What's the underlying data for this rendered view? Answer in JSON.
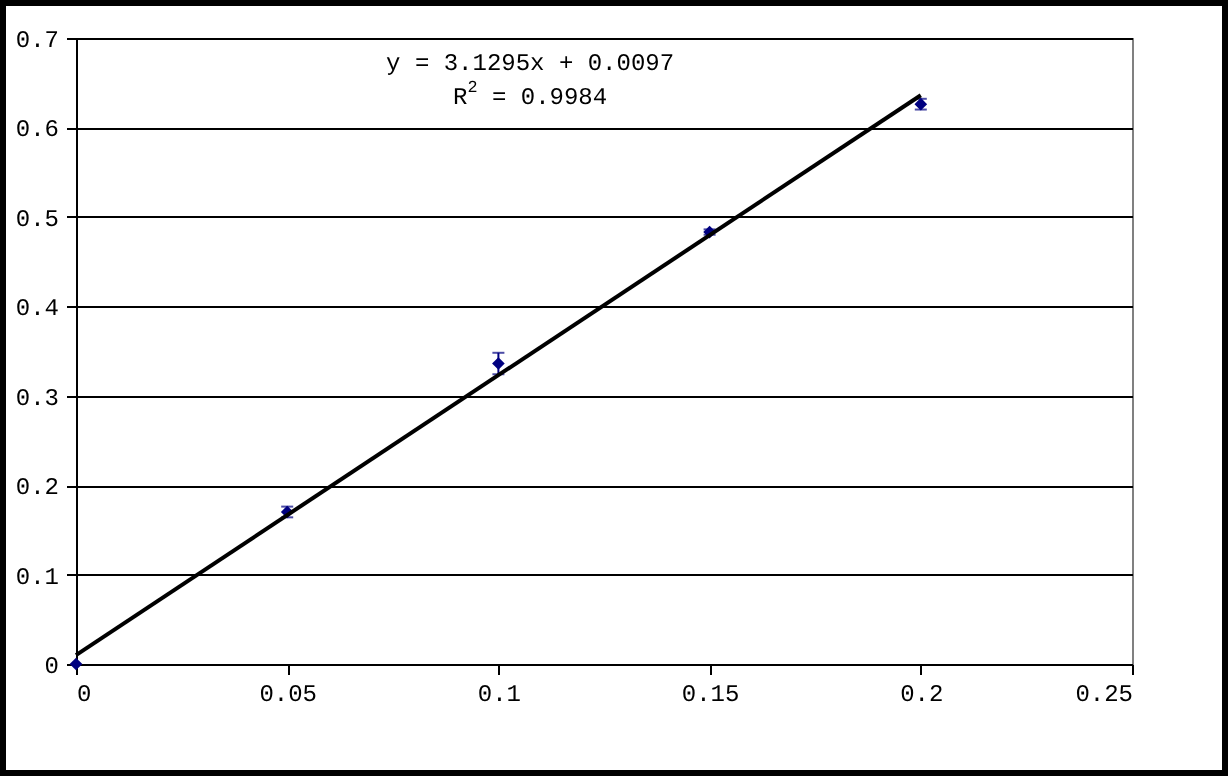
{
  "chart_data": {
    "type": "scatter",
    "x": [
      0,
      0.05,
      0.1,
      0.15,
      0.2
    ],
    "series": [
      {
        "color": "#000080",
        "marker": "diamond",
        "values": [
          0,
          0.17,
          0.336,
          0.483,
          0.626
        ],
        "errors": [
          null,
          0.006,
          0.012,
          0.003,
          0.006
        ]
      },
      {
        "type": "line",
        "color": "#000000",
        "x": [
          0,
          0.2
        ],
        "values": [
          0.01,
          0.636
        ]
      }
    ],
    "annotations": [
      "y = 3.1295x + 0.0097",
      "R$^{2}$ = 0.9984"
    ],
    "xlim": [
      0,
      0.25
    ],
    "xticks": [
      0,
      0.05,
      0.1,
      0.15,
      0.2,
      0.25
    ],
    "ylim": [
      0,
      0.7
    ],
    "yticks": [
      0,
      0.1,
      0.2,
      0.3,
      0.4,
      0.5,
      0.6,
      0.7
    ],
    "grid": "y"
  }
}
